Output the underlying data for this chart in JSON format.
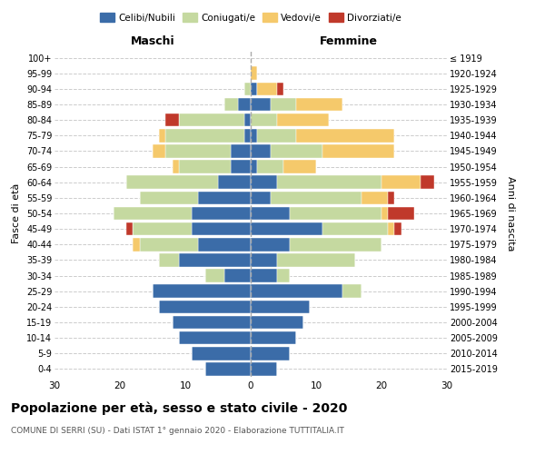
{
  "age_groups": [
    "0-4",
    "5-9",
    "10-14",
    "15-19",
    "20-24",
    "25-29",
    "30-34",
    "35-39",
    "40-44",
    "45-49",
    "50-54",
    "55-59",
    "60-64",
    "65-69",
    "70-74",
    "75-79",
    "80-84",
    "85-89",
    "90-94",
    "95-99",
    "100+"
  ],
  "birth_years": [
    "2015-2019",
    "2010-2014",
    "2005-2009",
    "2000-2004",
    "1995-1999",
    "1990-1994",
    "1985-1989",
    "1980-1984",
    "1975-1979",
    "1970-1974",
    "1965-1969",
    "1960-1964",
    "1955-1959",
    "1950-1954",
    "1945-1949",
    "1940-1944",
    "1935-1939",
    "1930-1934",
    "1925-1929",
    "1920-1924",
    "≤ 1919"
  ],
  "maschi": {
    "celibi": [
      7,
      9,
      11,
      12,
      14,
      15,
      4,
      11,
      8,
      9,
      9,
      8,
      5,
      3,
      3,
      1,
      1,
      2,
      0,
      0,
      0
    ],
    "coniugati": [
      0,
      0,
      0,
      0,
      0,
      0,
      3,
      3,
      9,
      9,
      12,
      9,
      14,
      8,
      10,
      12,
      10,
      2,
      1,
      0,
      0
    ],
    "vedovi": [
      0,
      0,
      0,
      0,
      0,
      0,
      0,
      0,
      1,
      0,
      0,
      0,
      0,
      1,
      2,
      1,
      0,
      0,
      0,
      0,
      0
    ],
    "divorziati": [
      0,
      0,
      0,
      0,
      0,
      0,
      0,
      0,
      0,
      1,
      0,
      0,
      0,
      0,
      0,
      0,
      2,
      0,
      0,
      0,
      0
    ]
  },
  "femmine": {
    "nubili": [
      4,
      6,
      7,
      8,
      9,
      14,
      4,
      4,
      6,
      11,
      6,
      3,
      4,
      1,
      3,
      1,
      0,
      3,
      1,
      0,
      0
    ],
    "coniugate": [
      0,
      0,
      0,
      0,
      0,
      3,
      2,
      12,
      14,
      10,
      14,
      14,
      16,
      4,
      8,
      6,
      4,
      4,
      0,
      0,
      0
    ],
    "vedove": [
      0,
      0,
      0,
      0,
      0,
      0,
      0,
      0,
      0,
      1,
      1,
      4,
      6,
      5,
      11,
      15,
      8,
      7,
      3,
      1,
      0
    ],
    "divorziate": [
      0,
      0,
      0,
      0,
      0,
      0,
      0,
      0,
      0,
      1,
      4,
      1,
      2,
      0,
      0,
      0,
      0,
      0,
      1,
      0,
      0
    ]
  },
  "colors": {
    "celibi": "#3b6ca8",
    "coniugati": "#c5d9a0",
    "vedovi": "#f5c96b",
    "divorziati": "#c0392b"
  },
  "xlim": 30,
  "title": "Popolazione per età, sesso e stato civile - 2020",
  "subtitle": "COMUNE DI SERRI (SU) - Dati ISTAT 1° gennaio 2020 - Elaborazione TUTTITALIA.IT",
  "ylabel_left": "Fasce di età",
  "ylabel_right": "Anni di nascita",
  "xlabel_maschi": "Maschi",
  "xlabel_femmine": "Femmine",
  "bg_color": "#ffffff",
  "grid_color": "#cccccc"
}
